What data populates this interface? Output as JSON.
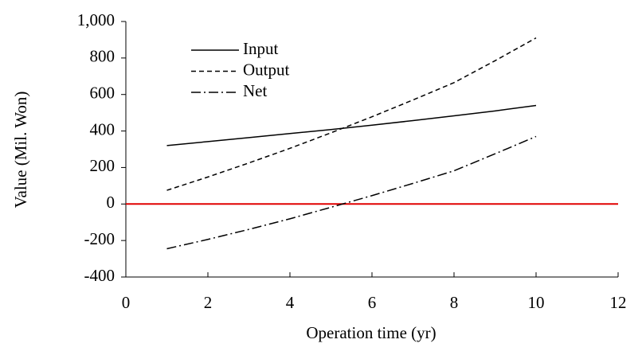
{
  "chart_data": {
    "type": "line",
    "x_label": "Operation time (yr)",
    "y_label": "Value (Mil. Won)",
    "x": [
      1,
      2,
      3,
      4,
      5,
      6,
      7,
      8,
      9,
      10
    ],
    "series": [
      {
        "name": "Input",
        "color": "#000000",
        "dash": "solid",
        "values": [
          320,
          342,
          364,
          386,
          408,
          432,
          457,
          483,
          510,
          540
        ]
      },
      {
        "name": "Output",
        "color": "#000000",
        "dash": "dashed",
        "values": [
          75,
          148,
          225,
          305,
          390,
          478,
          570,
          665,
          785,
          910
        ]
      },
      {
        "name": "Net",
        "color": "#000000",
        "dash": "dashdot",
        "values": [
          -245,
          -194,
          -139,
          -81,
          -18,
          46,
          113,
          182,
          275,
          370
        ]
      }
    ],
    "reference_line": {
      "value": 0,
      "color": "#e00000"
    },
    "xlim": [
      0,
      12
    ],
    "xticks": [
      0,
      2,
      4,
      6,
      8,
      10,
      12
    ],
    "ylim": [
      -400,
      1000
    ],
    "yticks": [
      -400,
      -200,
      0,
      200,
      400,
      600,
      800,
      {
        "value": 1000,
        "label": "1,000"
      }
    ],
    "legend": "upper-left"
  }
}
